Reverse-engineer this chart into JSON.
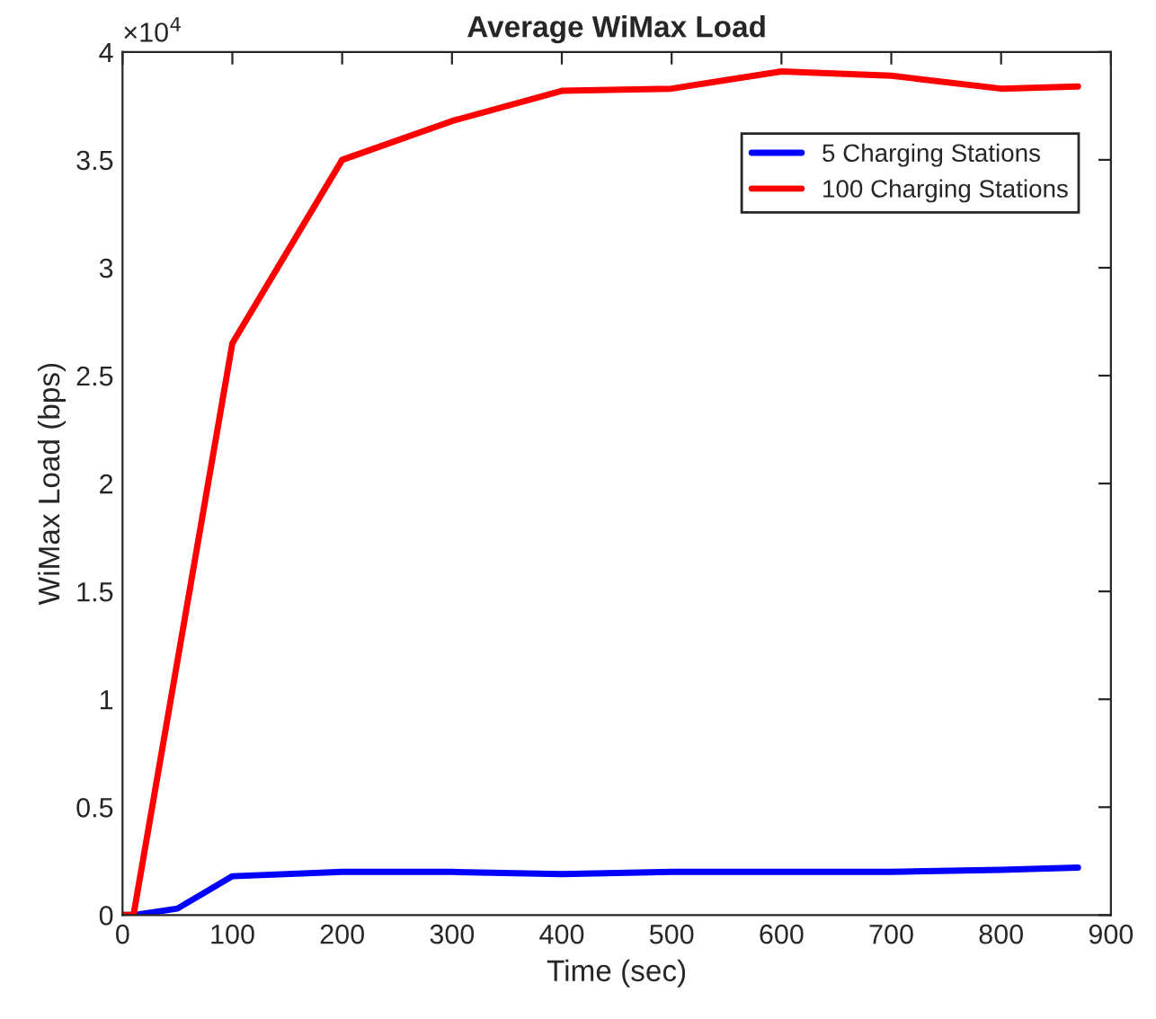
{
  "chart_data": {
    "type": "line",
    "title": "Average WiMax Load",
    "xlabel": "Time (sec)",
    "ylabel": "WiMax Load (bps)",
    "annotations": [
      "×10$^{4}$"
    ],
    "series": [
      {
        "name": "5 Charging Stations",
        "color": "#0000ff",
        "x": [
          0,
          10,
          50,
          100,
          200,
          300,
          400,
          500,
          600,
          700,
          800,
          870
        ],
        "values": [
          0,
          0,
          0.03,
          0.18,
          0.2,
          0.2,
          0.19,
          0.2,
          0.2,
          0.2,
          0.21,
          0.22
        ]
      },
      {
        "name": "100 Charging Stations",
        "color": "#ff0000",
        "x": [
          0,
          10,
          100,
          200,
          300,
          400,
          500,
          600,
          700,
          800,
          870
        ],
        "values": [
          0,
          0,
          2.65,
          3.5,
          3.68,
          3.82,
          3.83,
          3.91,
          3.89,
          3.83,
          3.84
        ]
      }
    ],
    "xlim": [
      0,
      900
    ],
    "xticks": [
      0,
      100,
      200,
      300,
      400,
      500,
      600,
      700,
      800,
      900
    ],
    "ylim": [
      0,
      4
    ],
    "yticks": [
      0,
      0.5,
      1,
      1.5,
      2,
      2.5,
      3,
      3.5,
      4
    ],
    "legend": "top right",
    "grid": false,
    "line_style": "solid",
    "marker": "none"
  }
}
